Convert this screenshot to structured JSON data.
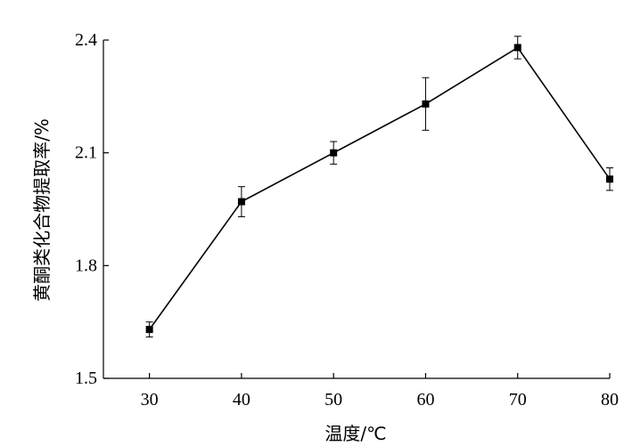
{
  "chart_data": {
    "type": "line",
    "title": "",
    "xlabel": "温度/℃",
    "ylabel": "黄酮类化合物提取率/%",
    "x": [
      30,
      40,
      50,
      60,
      70,
      80
    ],
    "xlim": [
      25,
      80
    ],
    "ylim": [
      1.5,
      2.4
    ],
    "xticks": [
      30,
      40,
      50,
      60,
      70,
      80
    ],
    "yticks": [
      1.5,
      1.8,
      2.1,
      2.4
    ],
    "ytick_labels": [
      "1.5",
      "1.8",
      "2.1",
      "2.4"
    ],
    "grid": false,
    "legend": "none",
    "series": [
      {
        "values": [
          1.63,
          1.97,
          2.1,
          2.23,
          2.38,
          2.03
        ],
        "errors": [
          0.02,
          0.04,
          0.03,
          0.07,
          0.03,
          0.03
        ],
        "color": "#000000",
        "marker": "square"
      }
    ]
  }
}
